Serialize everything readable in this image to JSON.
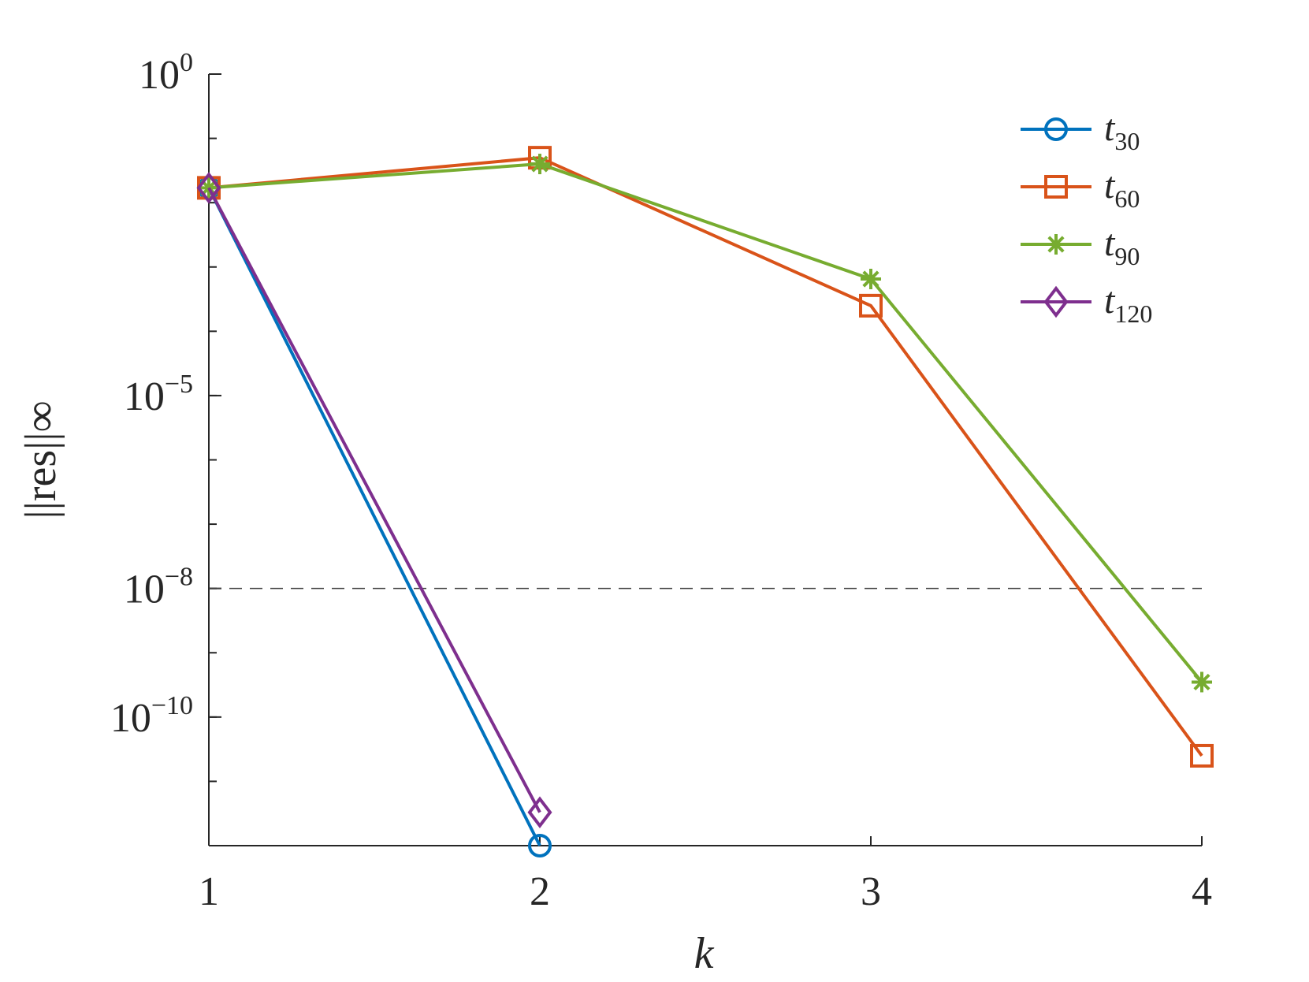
{
  "chart_data": {
    "type": "line",
    "xlabel": "k",
    "ylabel": "||res||∞",
    "yscale": "log",
    "xlim": [
      1,
      4
    ],
    "ylim": [
      1e-12,
      1
    ],
    "x_ticks": [
      "1",
      "2",
      "3",
      "4"
    ],
    "y_ticks": [
      {
        "base": "10",
        "exp": "0",
        "value": 1
      },
      {
        "base": "10",
        "exp": "−5",
        "value": 1e-05
      },
      {
        "base": "10",
        "exp": "−8",
        "value": 1e-08
      },
      {
        "base": "10",
        "exp": "−10",
        "value": 1e-10
      }
    ],
    "reference_line": {
      "y": 1e-08,
      "style": "dashed",
      "color": "#404040"
    },
    "grid": false,
    "legend_position": "top-right",
    "series": [
      {
        "name": "t",
        "subscript": "30",
        "color": "#0072BD",
        "marker": "circle",
        "x": [
          1,
          2
        ],
        "y": [
          0.017,
          1e-12
        ]
      },
      {
        "name": "t",
        "subscript": "60",
        "color": "#D95319",
        "marker": "square",
        "x": [
          1,
          2,
          3,
          4
        ],
        "y": [
          0.017,
          0.05,
          0.00025,
          2.5e-11
        ]
      },
      {
        "name": "t",
        "subscript": "90",
        "color": "#77AC30",
        "marker": "asterisk",
        "x": [
          1,
          2,
          3,
          4
        ],
        "y": [
          0.017,
          0.04,
          0.00065,
          3.5e-10
        ]
      },
      {
        "name": "t",
        "subscript": "120",
        "color": "#7E2F8E",
        "marker": "diamond",
        "x": [
          1,
          2
        ],
        "y": [
          0.017,
          3.3e-12
        ]
      }
    ]
  }
}
